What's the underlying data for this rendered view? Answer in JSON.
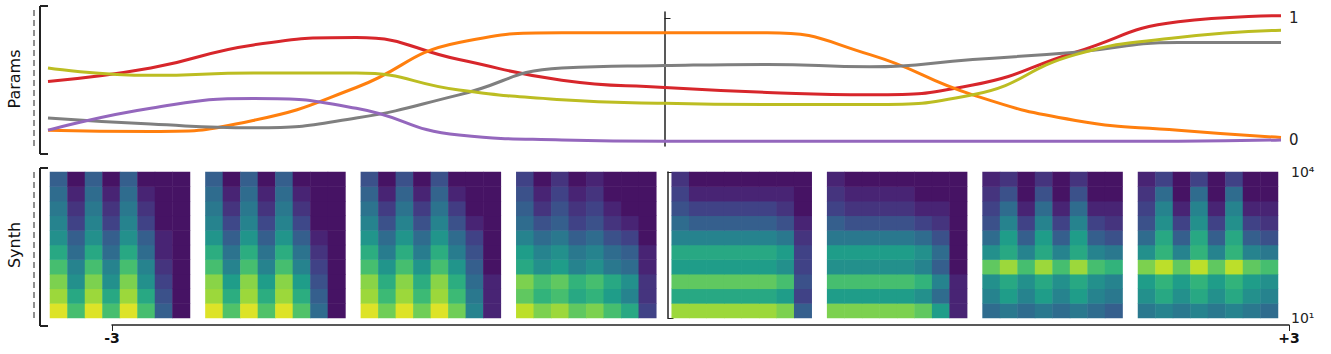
{
  "chart_data": [
    {
      "type": "line",
      "ylabel": "Params",
      "x": [
        -3,
        -2.5,
        -2,
        -1.5,
        -1,
        -0.5,
        0,
        0.5,
        1,
        1.5,
        2,
        2.5,
        3
      ],
      "xlim": [
        -3,
        3
      ],
      "ylim": [
        -0.05,
        1.05
      ],
      "yticks": [
        0,
        1
      ],
      "tick_labels": "y",
      "grid": false,
      "series": [
        {
          "color": "#d7262b",
          "values": [
            0.48,
            0.59,
            0.78,
            0.84,
            0.66,
            0.49,
            0.43,
            0.39,
            0.37,
            0.45,
            0.72,
            0.97,
            1.02
          ]
        },
        {
          "color": "#ff7f0e",
          "values": [
            0.08,
            0.07,
            0.16,
            0.43,
            0.8,
            0.88,
            0.88,
            0.88,
            0.7,
            0.37,
            0.16,
            0.08,
            0.02
          ]
        },
        {
          "color": "#7f7f7f",
          "values": [
            0.18,
            0.13,
            0.1,
            0.18,
            0.37,
            0.59,
            0.61,
            0.62,
            0.6,
            0.66,
            0.72,
            0.8,
            0.8
          ]
        },
        {
          "color": "#bcbd22",
          "values": [
            0.59,
            0.53,
            0.55,
            0.55,
            0.41,
            0.33,
            0.3,
            0.29,
            0.29,
            0.37,
            0.7,
            0.84,
            0.9
          ]
        },
        {
          "color": "#9467bd",
          "values": [
            0.08,
            0.26,
            0.34,
            0.26,
            0.04,
            0.0,
            -0.01,
            -0.01,
            -0.01,
            -0.01,
            -0.01,
            -0.01,
            0.0
          ]
        }
      ]
    },
    {
      "type": "heatmap",
      "ylabel": "Synth",
      "log": "y",
      "ylim": [
        10,
        10000
      ],
      "yticks": [
        {
          "value": 10,
          "label": "10¹"
        },
        {
          "value": 10000,
          "label": "10⁴"
        }
      ],
      "xlim": [
        -3,
        3
      ],
      "xticks": [
        {
          "value": -3,
          "label": "-3"
        },
        {
          "value": 3,
          "label": "+3"
        }
      ],
      "zlim": [
        0,
        1
      ],
      "panels": [
        [
          [
            0.95,
            0.7,
            0.95,
            0.7,
            0.95,
            0.7,
            0.3,
            0.05
          ],
          [
            0.85,
            0.6,
            0.85,
            0.6,
            0.85,
            0.6,
            0.25,
            0.05
          ],
          [
            0.8,
            0.5,
            0.8,
            0.5,
            0.8,
            0.5,
            0.2,
            0.05
          ],
          [
            0.7,
            0.45,
            0.7,
            0.45,
            0.7,
            0.45,
            0.15,
            0.05
          ],
          [
            0.6,
            0.35,
            0.6,
            0.35,
            0.6,
            0.35,
            0.1,
            0.05
          ],
          [
            0.5,
            0.3,
            0.5,
            0.3,
            0.5,
            0.3,
            0.1,
            0.05
          ],
          [
            0.45,
            0.2,
            0.45,
            0.2,
            0.45,
            0.2,
            0.05,
            0.05
          ],
          [
            0.4,
            0.15,
            0.4,
            0.15,
            0.4,
            0.15,
            0.05,
            0.05
          ],
          [
            0.35,
            0.1,
            0.35,
            0.1,
            0.35,
            0.1,
            0.05,
            0.05
          ],
          [
            0.3,
            0.05,
            0.3,
            0.05,
            0.3,
            0.05,
            0.05,
            0.05
          ]
        ],
        [
          [
            0.95,
            0.72,
            0.95,
            0.72,
            0.95,
            0.72,
            0.35,
            0.05
          ],
          [
            0.85,
            0.62,
            0.85,
            0.62,
            0.85,
            0.62,
            0.3,
            0.05
          ],
          [
            0.82,
            0.55,
            0.82,
            0.55,
            0.82,
            0.55,
            0.25,
            0.05
          ],
          [
            0.7,
            0.45,
            0.7,
            0.45,
            0.7,
            0.45,
            0.2,
            0.05
          ],
          [
            0.62,
            0.38,
            0.62,
            0.38,
            0.62,
            0.38,
            0.15,
            0.05
          ],
          [
            0.52,
            0.3,
            0.52,
            0.3,
            0.52,
            0.3,
            0.1,
            0.05
          ],
          [
            0.45,
            0.22,
            0.45,
            0.22,
            0.45,
            0.22,
            0.05,
            0.05
          ],
          [
            0.4,
            0.15,
            0.4,
            0.15,
            0.4,
            0.15,
            0.05,
            0.05
          ],
          [
            0.35,
            0.1,
            0.35,
            0.1,
            0.35,
            0.1,
            0.05,
            0.05
          ],
          [
            0.3,
            0.05,
            0.3,
            0.05,
            0.3,
            0.05,
            0.05,
            0.05
          ]
        ],
        [
          [
            0.95,
            0.78,
            0.95,
            0.78,
            0.95,
            0.78,
            0.45,
            0.1
          ],
          [
            0.85,
            0.68,
            0.85,
            0.68,
            0.85,
            0.68,
            0.4,
            0.1
          ],
          [
            0.82,
            0.62,
            0.82,
            0.62,
            0.82,
            0.62,
            0.35,
            0.1
          ],
          [
            0.7,
            0.52,
            0.7,
            0.52,
            0.7,
            0.52,
            0.3,
            0.05
          ],
          [
            0.62,
            0.42,
            0.62,
            0.42,
            0.62,
            0.42,
            0.25,
            0.05
          ],
          [
            0.52,
            0.35,
            0.52,
            0.35,
            0.52,
            0.35,
            0.2,
            0.05
          ],
          [
            0.45,
            0.25,
            0.45,
            0.25,
            0.45,
            0.25,
            0.1,
            0.05
          ],
          [
            0.38,
            0.18,
            0.38,
            0.18,
            0.38,
            0.18,
            0.05,
            0.05
          ],
          [
            0.32,
            0.1,
            0.32,
            0.1,
            0.32,
            0.1,
            0.05,
            0.05
          ],
          [
            0.25,
            0.05,
            0.25,
            0.05,
            0.25,
            0.05,
            0.05,
            0.05
          ]
        ],
        [
          [
            0.9,
            0.8,
            0.85,
            0.75,
            0.8,
            0.7,
            0.6,
            0.2
          ],
          [
            0.75,
            0.65,
            0.7,
            0.6,
            0.65,
            0.55,
            0.45,
            0.15
          ],
          [
            0.8,
            0.7,
            0.75,
            0.65,
            0.7,
            0.6,
            0.5,
            0.15
          ],
          [
            0.6,
            0.5,
            0.55,
            0.45,
            0.5,
            0.4,
            0.35,
            0.1
          ],
          [
            0.55,
            0.45,
            0.5,
            0.4,
            0.45,
            0.35,
            0.3,
            0.1
          ],
          [
            0.45,
            0.35,
            0.4,
            0.3,
            0.35,
            0.25,
            0.2,
            0.05
          ],
          [
            0.35,
            0.25,
            0.3,
            0.2,
            0.25,
            0.15,
            0.1,
            0.05
          ],
          [
            0.3,
            0.15,
            0.25,
            0.15,
            0.2,
            0.1,
            0.05,
            0.05
          ],
          [
            0.25,
            0.1,
            0.2,
            0.1,
            0.15,
            0.05,
            0.05,
            0.05
          ],
          [
            0.2,
            0.05,
            0.15,
            0.05,
            0.1,
            0.05,
            0.05,
            0.05
          ]
        ],
        [
          [
            0.85,
            0.85,
            0.85,
            0.85,
            0.85,
            0.85,
            0.8,
            0.3
          ],
          [
            0.6,
            0.6,
            0.6,
            0.6,
            0.6,
            0.6,
            0.55,
            0.2
          ],
          [
            0.75,
            0.75,
            0.75,
            0.75,
            0.75,
            0.75,
            0.7,
            0.25
          ],
          [
            0.55,
            0.55,
            0.55,
            0.55,
            0.55,
            0.55,
            0.5,
            0.2
          ],
          [
            0.6,
            0.6,
            0.6,
            0.6,
            0.6,
            0.6,
            0.55,
            0.2
          ],
          [
            0.45,
            0.45,
            0.45,
            0.45,
            0.45,
            0.45,
            0.4,
            0.15
          ],
          [
            0.35,
            0.3,
            0.3,
            0.3,
            0.3,
            0.3,
            0.25,
            0.1
          ],
          [
            0.25,
            0.2,
            0.2,
            0.2,
            0.2,
            0.2,
            0.15,
            0.05
          ],
          [
            0.2,
            0.1,
            0.1,
            0.1,
            0.1,
            0.1,
            0.1,
            0.05
          ],
          [
            0.15,
            0.05,
            0.05,
            0.05,
            0.05,
            0.05,
            0.05,
            0.05
          ]
        ],
        [
          [
            0.8,
            0.8,
            0.8,
            0.8,
            0.8,
            0.75,
            0.55,
            0.1
          ],
          [
            0.55,
            0.55,
            0.55,
            0.55,
            0.55,
            0.5,
            0.35,
            0.1
          ],
          [
            0.7,
            0.7,
            0.7,
            0.7,
            0.7,
            0.65,
            0.45,
            0.1
          ],
          [
            0.5,
            0.5,
            0.5,
            0.5,
            0.5,
            0.45,
            0.3,
            0.05
          ],
          [
            0.55,
            0.55,
            0.55,
            0.55,
            0.55,
            0.5,
            0.35,
            0.05
          ],
          [
            0.4,
            0.4,
            0.4,
            0.4,
            0.4,
            0.35,
            0.25,
            0.05
          ],
          [
            0.3,
            0.25,
            0.25,
            0.25,
            0.25,
            0.2,
            0.15,
            0.05
          ],
          [
            0.2,
            0.15,
            0.15,
            0.15,
            0.15,
            0.1,
            0.1,
            0.05
          ],
          [
            0.15,
            0.1,
            0.1,
            0.1,
            0.1,
            0.05,
            0.05,
            0.05
          ],
          [
            0.1,
            0.05,
            0.05,
            0.05,
            0.05,
            0.05,
            0.05,
            0.05
          ]
        ],
        [
          [
            0.35,
            0.4,
            0.35,
            0.4,
            0.35,
            0.4,
            0.35,
            0.3
          ],
          [
            0.45,
            0.55,
            0.45,
            0.55,
            0.45,
            0.55,
            0.45,
            0.4
          ],
          [
            0.5,
            0.6,
            0.5,
            0.6,
            0.5,
            0.6,
            0.5,
            0.45
          ],
          [
            0.75,
            0.85,
            0.7,
            0.85,
            0.7,
            0.85,
            0.7,
            0.65
          ],
          [
            0.5,
            0.6,
            0.45,
            0.6,
            0.45,
            0.6,
            0.45,
            0.4
          ],
          [
            0.35,
            0.55,
            0.3,
            0.55,
            0.3,
            0.55,
            0.3,
            0.25
          ],
          [
            0.25,
            0.45,
            0.2,
            0.45,
            0.2,
            0.45,
            0.2,
            0.15
          ],
          [
            0.2,
            0.35,
            0.1,
            0.35,
            0.1,
            0.35,
            0.1,
            0.1
          ],
          [
            0.15,
            0.25,
            0.05,
            0.25,
            0.05,
            0.25,
            0.05,
            0.05
          ],
          [
            0.1,
            0.15,
            0.05,
            0.15,
            0.05,
            0.15,
            0.05,
            0.05
          ]
        ],
        [
          [
            0.4,
            0.45,
            0.4,
            0.45,
            0.4,
            0.45,
            0.4,
            0.35
          ],
          [
            0.5,
            0.6,
            0.5,
            0.6,
            0.5,
            0.6,
            0.5,
            0.45
          ],
          [
            0.55,
            0.65,
            0.55,
            0.65,
            0.55,
            0.65,
            0.55,
            0.5
          ],
          [
            0.8,
            0.9,
            0.75,
            0.9,
            0.75,
            0.9,
            0.75,
            0.7
          ],
          [
            0.5,
            0.65,
            0.45,
            0.65,
            0.45,
            0.65,
            0.45,
            0.4
          ],
          [
            0.35,
            0.6,
            0.3,
            0.6,
            0.3,
            0.6,
            0.3,
            0.25
          ],
          [
            0.25,
            0.5,
            0.2,
            0.5,
            0.2,
            0.5,
            0.2,
            0.15
          ],
          [
            0.2,
            0.45,
            0.1,
            0.45,
            0.1,
            0.45,
            0.1,
            0.1
          ],
          [
            0.15,
            0.35,
            0.05,
            0.35,
            0.05,
            0.35,
            0.05,
            0.05
          ],
          [
            0.1,
            0.2,
            0.05,
            0.2,
            0.05,
            0.2,
            0.05,
            0.05
          ]
        ]
      ]
    }
  ]
}
